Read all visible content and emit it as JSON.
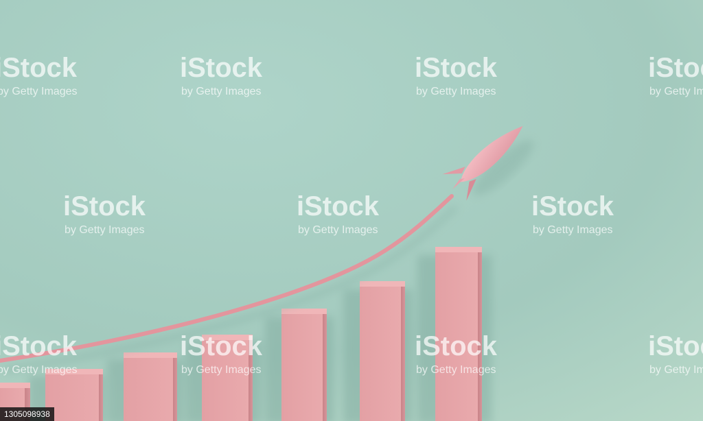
{
  "scene": {
    "description_icons": [
      "rocket-icon"
    ],
    "colors": {
      "background": "#a9d1c5",
      "bars": "#e6a3a7",
      "rocket": "#eda7b0"
    }
  },
  "watermark": {
    "brand": "iStock",
    "credit": "by Getty Images"
  },
  "image_id": "1305098938"
}
